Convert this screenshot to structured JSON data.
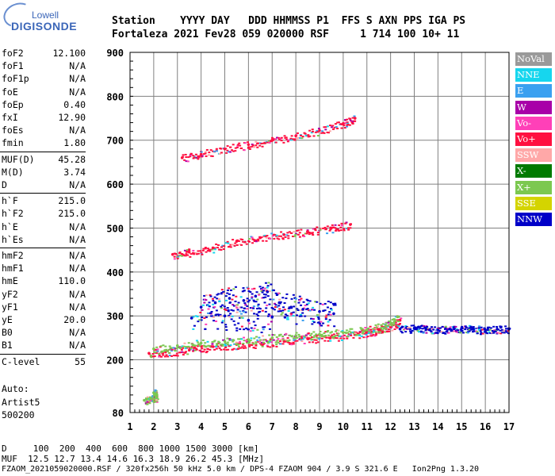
{
  "logo": {
    "top": "Lowell",
    "bottom": "DIGISONDE"
  },
  "header": {
    "line1": "Station    YYYY DAY   DDD HHMMSS P1  FFS S AXN PPS IGA PS",
    "line2": "Fortaleza 2021 Fev28 059 020000 RSF     1 714 100 10+ 11"
  },
  "params": [
    {
      "k": "foF2",
      "v": "12.100"
    },
    {
      "k": "foF1",
      "v": "N/A"
    },
    {
      "k": "foF1p",
      "v": "N/A"
    },
    {
      "k": "foE",
      "v": "N/A"
    },
    {
      "k": "foEp",
      "v": "0.40"
    },
    {
      "k": "fxI",
      "v": "12.90"
    },
    {
      "k": "foEs",
      "v": "N/A"
    },
    {
      "k": "fmin",
      "v": "1.80"
    },
    {
      "k": "MUF(D)",
      "v": "45.28"
    },
    {
      "k": "M(D)",
      "v": "3.74"
    },
    {
      "k": "D",
      "v": "N/A"
    },
    {
      "k": "h`F",
      "v": "215.0"
    },
    {
      "k": "h`F2",
      "v": "215.0"
    },
    {
      "k": "h`E",
      "v": "N/A"
    },
    {
      "k": "h`Es",
      "v": "N/A"
    },
    {
      "k": "hmF2",
      "v": "N/A"
    },
    {
      "k": "hmF1",
      "v": "N/A"
    },
    {
      "k": "hmE",
      "v": "110.0"
    },
    {
      "k": "yF2",
      "v": "N/A"
    },
    {
      "k": "yF1",
      "v": "N/A"
    },
    {
      "k": "yE",
      "v": "20.0"
    },
    {
      "k": "B0",
      "v": "N/A"
    },
    {
      "k": "B1",
      "v": "N/A"
    },
    {
      "k": "C-level",
      "v": "55"
    }
  ],
  "auto": {
    "label": "Auto:",
    "name": "Artist5",
    "code": "500200"
  },
  "legend": [
    {
      "label": "NoVal",
      "color": "#9a9a9a"
    },
    {
      "label": "NNE",
      "color": "#16d6ee"
    },
    {
      "label": "E",
      "color": "#3aa0f0"
    },
    {
      "label": "W",
      "color": "#a800a8"
    },
    {
      "label": "Vo-",
      "color": "#ff40b8"
    },
    {
      "label": "Vo+",
      "color": "#ff1040"
    },
    {
      "label": "SSW",
      "color": "#ffa8a8"
    },
    {
      "label": "X-",
      "color": "#007a00"
    },
    {
      "label": "X+",
      "color": "#7cc850"
    },
    {
      "label": "SSE",
      "color": "#d4d400"
    },
    {
      "label": "NNW",
      "color": "#0000c8"
    }
  ],
  "bottom": {
    "line1": "D     100  200  400  600  800 1000 1500 3000 [km]",
    "line2": "MUF  12.5 12.7 13.4 14.6 16.3 18.9 26.2 45.3 [MHz]",
    "line3": "FZAOM_2021059020000.RSF / 320fx256h 50 kHz 5.0 km / DPS-4 FZAOM 904 / 3.9 S 321.6 E   Ion2Png 1.3.20"
  },
  "chart_data": {
    "type": "scatter",
    "title": "",
    "xlabel": "",
    "ylabel": "",
    "xlim": [
      1,
      17
    ],
    "ylim": [
      80,
      900
    ],
    "xticks": [
      1,
      2,
      3,
      4,
      5,
      6,
      7,
      8,
      9,
      10,
      11,
      12,
      13,
      14,
      15,
      16,
      17
    ],
    "yticks": [
      80,
      200,
      300,
      400,
      500,
      600,
      700,
      800,
      900
    ],
    "grid": true,
    "bands": [
      {
        "name": "Vo+",
        "color": "#ff1040",
        "points": [
          [
            1.8,
            215
          ],
          [
            2.5,
            218
          ],
          [
            3.5,
            222
          ],
          [
            4.5,
            230
          ],
          [
            5.5,
            235
          ],
          [
            6.5,
            238
          ],
          [
            7.5,
            242
          ],
          [
            8.5,
            248
          ],
          [
            9.5,
            252
          ],
          [
            10.5,
            258
          ],
          [
            11.0,
            262
          ],
          [
            11.5,
            268
          ],
          [
            12.0,
            275
          ],
          [
            12.4,
            290
          ]
        ]
      },
      {
        "name": "X+",
        "color": "#7cc850",
        "points": [
          [
            2.0,
            225
          ],
          [
            3.0,
            232
          ],
          [
            4.0,
            238
          ],
          [
            5.0,
            242
          ],
          [
            6.0,
            246
          ],
          [
            7.0,
            250
          ],
          [
            8.0,
            255
          ],
          [
            9.0,
            258
          ],
          [
            10.0,
            262
          ],
          [
            11.0,
            268
          ],
          [
            11.8,
            278
          ],
          [
            12.3,
            298
          ]
        ]
      },
      {
        "name": "NNW",
        "color": "#0000c8",
        "points": [
          [
            12.4,
            270
          ],
          [
            13.0,
            272
          ],
          [
            13.5,
            270
          ],
          [
            14.0,
            268
          ],
          [
            14.5,
            270
          ],
          [
            15.0,
            272
          ],
          [
            15.5,
            270
          ],
          [
            16.0,
            268
          ],
          [
            16.5,
            270
          ],
          [
            17.0,
            270
          ]
        ]
      },
      {
        "name": "NNW scatter",
        "color": "#0000c8",
        "points": [
          [
            4.0,
            320
          ],
          [
            4.6,
            330
          ],
          [
            5.2,
            340
          ],
          [
            5.8,
            335
          ],
          [
            6.3,
            345
          ],
          [
            6.8,
            355
          ],
          [
            7.3,
            330
          ],
          [
            7.8,
            320
          ],
          [
            8.3,
            315
          ],
          [
            9.0,
            310
          ],
          [
            9.6,
            305
          ],
          [
            3.6,
            295
          ],
          [
            5.0,
            300
          ],
          [
            6.0,
            290
          ],
          [
            7.0,
            298
          ]
        ]
      },
      {
        "name": "2nd hop",
        "color": "#ff1040",
        "points": [
          [
            2.8,
            440
          ],
          [
            3.5,
            445
          ],
          [
            4.5,
            455
          ],
          [
            5.5,
            470
          ],
          [
            6.5,
            478
          ],
          [
            7.5,
            485
          ],
          [
            8.5,
            492
          ],
          [
            9.5,
            500
          ],
          [
            10.3,
            508
          ]
        ]
      },
      {
        "name": "3rd hop",
        "color": "#ff1040",
        "points": [
          [
            3.2,
            660
          ],
          [
            4.0,
            668
          ],
          [
            5.0,
            680
          ],
          [
            6.0,
            690
          ],
          [
            7.0,
            700
          ],
          [
            8.0,
            710
          ],
          [
            9.0,
            722
          ],
          [
            10.0,
            738
          ],
          [
            10.5,
            750
          ]
        ]
      },
      {
        "name": "Low",
        "color": "#7cc850",
        "points": [
          [
            1.6,
            108
          ],
          [
            1.9,
            112
          ],
          [
            2.1,
            115
          ],
          [
            2.0,
            125
          ]
        ]
      }
    ]
  }
}
